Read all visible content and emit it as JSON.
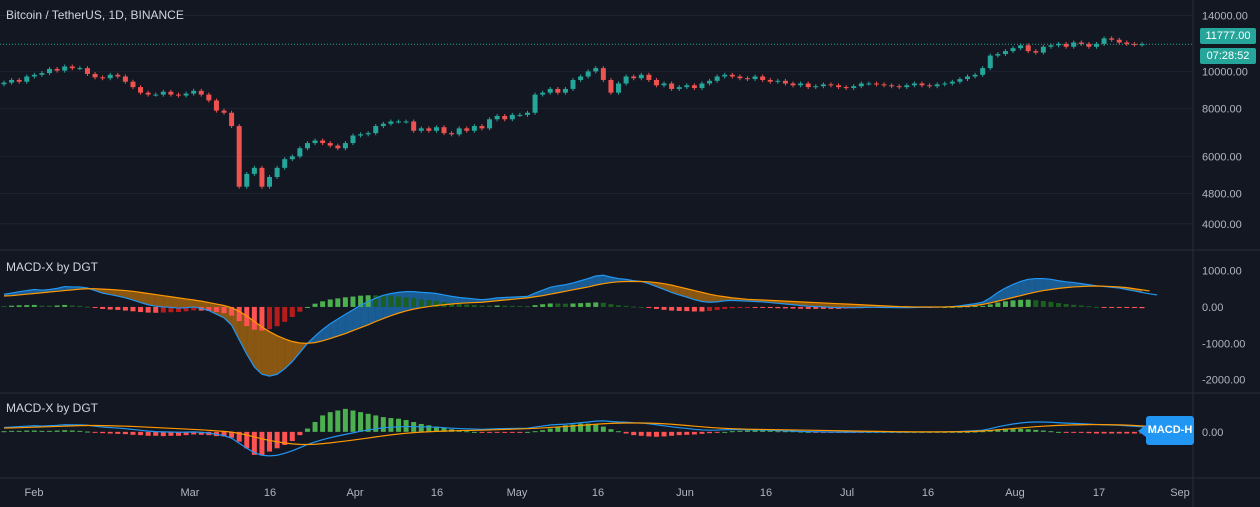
{
  "header": {
    "title": "Bitcoin / TetherUS, 1D, BINANCE",
    "indicator1": "MACD-X by DGT",
    "indicator2": "MACD-X by DGT"
  },
  "price_badge": {
    "value": "11777.00",
    "countdown": "07:28:52",
    "color": "#26a69a"
  },
  "macd_tag": {
    "label": "MACD-H"
  },
  "colors": {
    "bg": "#131722",
    "up": "#26a69a",
    "down": "#ef5350",
    "grid": "#1e2230",
    "macd": "#2196f3",
    "signal": "#ff9800",
    "hist_up": "#4caf50",
    "hist_down": "#ff5252"
  },
  "chart_data": [
    {
      "type": "candlestick",
      "title": "Bitcoin / TetherUS, 1D, BINANCE",
      "y_ticks": [
        "14000.00",
        "10000.00",
        "8000.00",
        "6000.00",
        "4800.00",
        "4000.00"
      ],
      "y_tick_values": [
        14000,
        10000,
        8000,
        6000,
        4800,
        4000
      ],
      "scale": "log",
      "ylim": [
        3500,
        15000
      ],
      "last_price": 11777,
      "x_ticks": [
        "Feb",
        "Mar",
        "16",
        "Apr",
        "16",
        "May",
        "16",
        "Jun",
        "16",
        "Jul",
        "16",
        "Aug",
        "17",
        "Sep"
      ],
      "close_series": [
        9350,
        9500,
        9400,
        9700,
        9800,
        9900,
        10150,
        10050,
        10300,
        10200,
        10200,
        9850,
        9650,
        9600,
        9800,
        9700,
        9400,
        9100,
        8800,
        8700,
        8700,
        8850,
        8700,
        8650,
        8750,
        8900,
        8700,
        8400,
        7900,
        7800,
        7200,
        5000,
        5400,
        5600,
        5000,
        5300,
        5600,
        5900,
        6000,
        6300,
        6500,
        6600,
        6500,
        6400,
        6300,
        6500,
        6800,
        6850,
        6900,
        7200,
        7300,
        7400,
        7400,
        7400,
        7000,
        7100,
        7000,
        7150,
        6900,
        6850,
        7100,
        7000,
        7200,
        7100,
        7500,
        7650,
        7500,
        7700,
        7700,
        7800,
        8700,
        8800,
        9000,
        8800,
        9000,
        9500,
        9700,
        10000,
        10200,
        9500,
        8800,
        9300,
        9700,
        9600,
        9800,
        9500,
        9200,
        9300,
        9000,
        9100,
        9200,
        9050,
        9300,
        9450,
        9700,
        9800,
        9700,
        9600,
        9550,
        9700,
        9500,
        9400,
        9450,
        9300,
        9200,
        9300,
        9100,
        9150,
        9250,
        9200,
        9100,
        9050,
        9150,
        9300,
        9300,
        9250,
        9200,
        9150,
        9100,
        9200,
        9300,
        9200,
        9150,
        9250,
        9300,
        9400,
        9550,
        9700,
        9800,
        10200,
        11000,
        11100,
        11300,
        11500,
        11700,
        11300,
        11200,
        11600,
        11700,
        11800,
        11600,
        11900,
        11800,
        11600,
        11800,
        12200,
        12100,
        11900,
        11800,
        11750,
        11777
      ]
    },
    {
      "type": "macd",
      "title": "MACD-X by DGT",
      "y_ticks": [
        "1000.00",
        "0.00",
        "-1000.00",
        "-2000.00"
      ],
      "y_tick_values": [
        1000,
        0,
        -1000,
        -2000
      ],
      "ylim": [
        -2200,
        1400
      ],
      "series": [
        {
          "name": "MACD",
          "values": [
            350,
            380,
            420,
            450,
            480,
            460,
            480,
            510,
            560,
            550,
            550,
            520,
            450,
            380,
            340,
            300,
            250,
            190,
            120,
            60,
            20,
            0,
            -10,
            -30,
            -20,
            0,
            -40,
            -100,
            -200,
            -300,
            -500,
            -900,
            -1300,
            -1650,
            -1850,
            -1900,
            -1850,
            -1700,
            -1500,
            -1250,
            -1000,
            -800,
            -620,
            -460,
            -330,
            -200,
            -80,
            50,
            150,
            240,
            320,
            370,
            400,
            420,
            420,
            400,
            390,
            370,
            330,
            290,
            260,
            240,
            220,
            200,
            220,
            250,
            260,
            270,
            280,
            290,
            380,
            460,
            540,
            580,
            610,
            660,
            720,
            780,
            850,
            870,
            820,
            780,
            760,
            720,
            700,
            640,
            560,
            480,
            400,
            330,
            270,
            200,
            150,
            130,
            140,
            170,
            180,
            170,
            160,
            150,
            140,
            120,
            100,
            80,
            60,
            40,
            20,
            10,
            0,
            -10,
            -20,
            -20,
            -20,
            -15,
            -10,
            -10,
            -15,
            -15,
            -20,
            -20,
            -15,
            -10,
            -10,
            -5,
            0,
            10,
            30,
            60,
            90,
            130,
            250,
            400,
            520,
            620,
            700,
            760,
            780,
            780,
            760,
            720,
            690,
            670,
            640,
            610,
            580,
            560,
            540,
            520,
            480,
            440,
            400,
            360,
            330
          ]
        },
        {
          "name": "Signal",
          "values": [
            300,
            310,
            330,
            350,
            370,
            390,
            410,
            430,
            450,
            470,
            490,
            500,
            500,
            490,
            480,
            465,
            450,
            430,
            400,
            370,
            340,
            310,
            280,
            250,
            220,
            190,
            160,
            120,
            80,
            40,
            -20,
            -120,
            -250,
            -400,
            -550,
            -680,
            -790,
            -880,
            -950,
            -990,
            -1000,
            -980,
            -930,
            -870,
            -800,
            -730,
            -650,
            -570,
            -490,
            -400,
            -320,
            -240,
            -170,
            -110,
            -60,
            -20,
            10,
            40,
            60,
            80,
            100,
            110,
            120,
            130,
            150,
            170,
            190,
            210,
            230,
            250,
            280,
            310,
            350,
            390,
            430,
            470,
            510,
            550,
            600,
            640,
            670,
            690,
            700,
            700,
            700,
            690,
            670,
            640,
            600,
            550,
            500,
            450,
            400,
            350,
            310,
            280,
            250,
            230,
            210,
            200,
            190,
            180,
            170,
            160,
            150,
            140,
            130,
            120,
            110,
            100,
            90,
            80,
            70,
            60,
            50,
            40,
            30,
            20,
            10,
            5,
            0,
            0,
            0,
            0,
            0,
            5,
            10,
            20,
            40,
            70,
            110,
            160,
            210,
            260,
            310,
            360,
            410,
            450,
            480,
            510,
            530,
            550,
            560,
            570,
            575,
            570,
            560,
            550,
            530,
            500,
            470,
            440
          ]
        }
      ]
    },
    {
      "type": "macd",
      "title": "MACD-X by DGT",
      "y_ticks": [
        "0.00"
      ],
      "y_tick_values": [
        0
      ],
      "ylim": [
        -1,
        1
      ],
      "series": [
        {
          "name": "MACD-H",
          "values": [
            0.02,
            0.03,
            0.03,
            0.04,
            0.04,
            0.03,
            0.03,
            0.04,
            0.05,
            0.04,
            0.03,
            0.01,
            -0.02,
            -0.04,
            -0.05,
            -0.06,
            -0.07,
            -0.09,
            -0.1,
            -0.12,
            -0.12,
            -0.13,
            -0.12,
            -0.12,
            -0.1,
            -0.08,
            -0.09,
            -0.1,
            -0.13,
            -0.14,
            -0.18,
            -0.3,
            -0.5,
            -0.7,
            -0.72,
            -0.6,
            -0.5,
            -0.4,
            -0.28,
            -0.1,
            0.1,
            0.3,
            0.5,
            0.6,
            0.65,
            0.7,
            0.65,
            0.6,
            0.55,
            0.5,
            0.45,
            0.42,
            0.4,
            0.36,
            0.3,
            0.24,
            0.2,
            0.16,
            0.12,
            0.08,
            0.04,
            0.02,
            0.0,
            -0.02,
            -0.02,
            -0.03,
            -0.03,
            -0.02,
            -0.02,
            0.0,
            0.02,
            0.05,
            0.1,
            0.15,
            0.2,
            0.22,
            0.25,
            0.25,
            0.22,
            0.16,
            0.08,
            0.02,
            -0.05,
            -0.1,
            -0.12,
            -0.14,
            -0.15,
            -0.14,
            -0.12,
            -0.1,
            -0.09,
            -0.08,
            -0.06,
            -0.04,
            -0.02,
            0.0,
            0.02,
            0.03,
            0.04,
            0.04,
            0.04,
            0.03,
            0.02,
            0.02,
            0.02,
            0.01,
            0.0,
            -0.01,
            -0.02,
            -0.02,
            -0.02,
            -0.02,
            -0.01,
            -0.01,
            0.0,
            0.0,
            0.0,
            0.0,
            0.0,
            0.0,
            0.0,
            0.0,
            0.0,
            0.0,
            0.0,
            0.0,
            0.0,
            0.0,
            0.01,
            0.02,
            0.04,
            0.08,
            0.1,
            0.1,
            0.09,
            0.08,
            0.06,
            0.04,
            0.02,
            0.0,
            -0.01,
            -0.02,
            -0.03,
            -0.04,
            -0.05,
            -0.05,
            -0.05,
            -0.05,
            -0.05,
            -0.05,
            -0.05,
            -0.05,
            -0.05
          ]
        }
      ]
    }
  ]
}
